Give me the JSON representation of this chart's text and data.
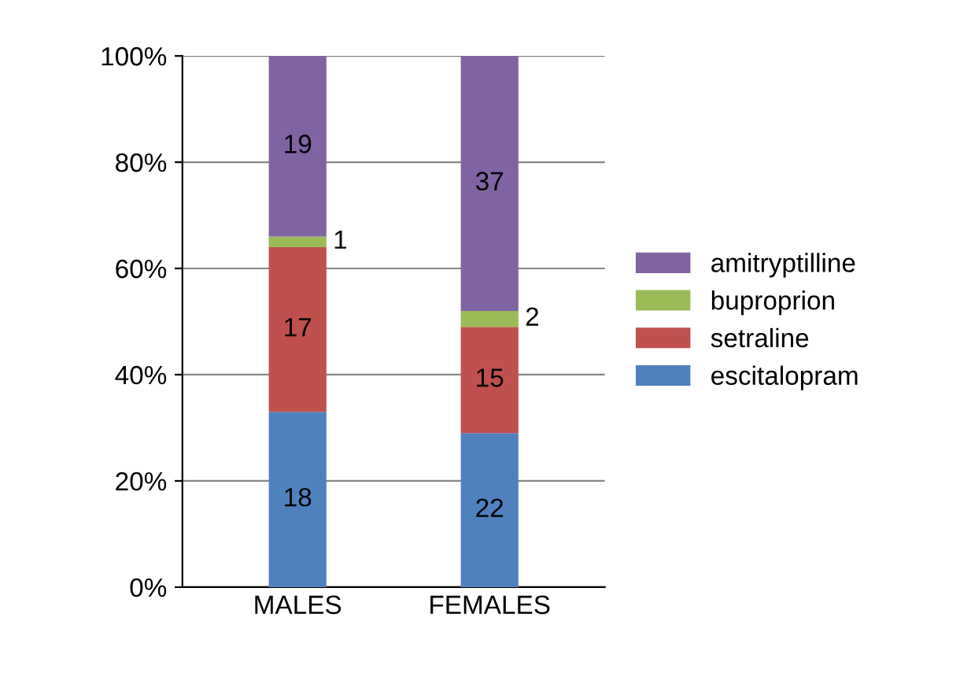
{
  "chart_data": {
    "type": "bar",
    "stacked": true,
    "categories": [
      "MALES",
      "FEMALES"
    ],
    "series": [
      {
        "name": "escitalopram",
        "color": "#4f81bd",
        "values": [
          33,
          29
        ]
      },
      {
        "name": "setraline",
        "color": "#c0504d",
        "values": [
          31,
          20
        ]
      },
      {
        "name": "buproprion",
        "color": "#9bbb59",
        "values": [
          2,
          3
        ]
      },
      {
        "name": "amitryptilline",
        "color": "#8064a2",
        "values": [
          34,
          48
        ]
      }
    ],
    "annotations": [
      "18",
      "17",
      "1",
      "19",
      "22",
      "15",
      "2",
      "37"
    ],
    "ylim": [
      0,
      100
    ],
    "yticks": [
      {
        "value": 0,
        "label": "0%"
      },
      {
        "value": 20,
        "label": "20%"
      },
      {
        "value": 40,
        "label": "40%"
      },
      {
        "value": 60,
        "label": "60%"
      },
      {
        "value": 80,
        "label": "80%"
      },
      {
        "value": 100,
        "label": "100%"
      }
    ],
    "grid": "y",
    "legend": "right"
  }
}
